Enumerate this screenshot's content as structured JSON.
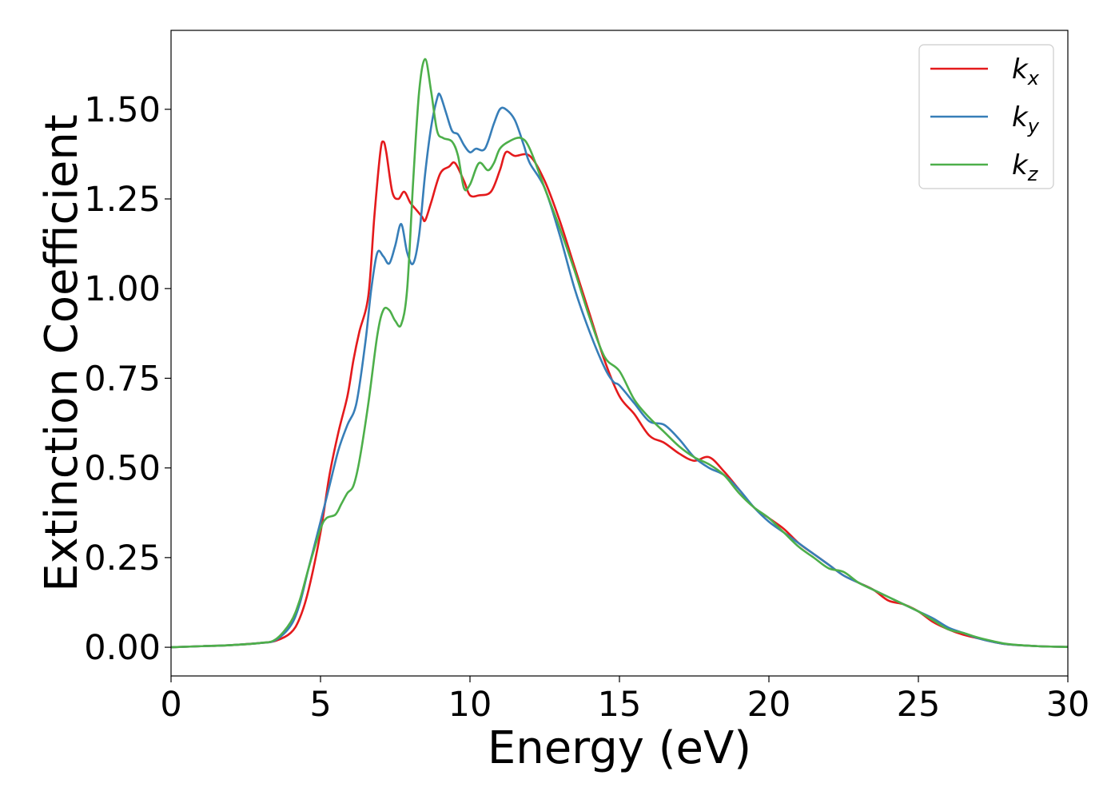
{
  "chart_data": {
    "type": "line",
    "title": "",
    "xlabel": "Energy (eV)",
    "ylabel": "Extinction Coefficient",
    "xlim": [
      0,
      30
    ],
    "ylim": [
      -0.08,
      1.72
    ],
    "xticks": [
      0,
      5,
      10,
      15,
      20,
      25,
      30
    ],
    "xtick_labels": [
      "0",
      "5",
      "10",
      "15",
      "20",
      "25",
      "30"
    ],
    "yticks": [
      0,
      0.25,
      0.5,
      0.75,
      1.0,
      1.25,
      1.5
    ],
    "ytick_labels": [
      "0.00",
      "0.25",
      "0.50",
      "0.75",
      "1.00",
      "1.25",
      "1.50"
    ],
    "grid": false,
    "legend": "top-right",
    "series": [
      {
        "name": "k",
        "subscript": "x",
        "color": "#e41a1c",
        "points": [
          [
            0,
            0
          ],
          [
            1,
            0.003
          ],
          [
            2,
            0.006
          ],
          [
            3,
            0.012
          ],
          [
            3.5,
            0.018
          ],
          [
            4,
            0.04
          ],
          [
            4.3,
            0.08
          ],
          [
            4.6,
            0.16
          ],
          [
            5,
            0.32
          ],
          [
            5.3,
            0.48
          ],
          [
            5.6,
            0.6
          ],
          [
            5.9,
            0.7
          ],
          [
            6.1,
            0.8
          ],
          [
            6.3,
            0.88
          ],
          [
            6.6,
            0.98
          ],
          [
            6.8,
            1.2
          ],
          [
            7.0,
            1.38
          ],
          [
            7.1,
            1.41
          ],
          [
            7.2,
            1.38
          ],
          [
            7.4,
            1.27
          ],
          [
            7.6,
            1.25
          ],
          [
            7.8,
            1.27
          ],
          [
            8.0,
            1.24
          ],
          [
            8.2,
            1.22
          ],
          [
            8.4,
            1.2
          ],
          [
            8.5,
            1.19
          ],
          [
            8.7,
            1.24
          ],
          [
            9.0,
            1.32
          ],
          [
            9.3,
            1.34
          ],
          [
            9.5,
            1.35
          ],
          [
            9.8,
            1.3
          ],
          [
            10.0,
            1.26
          ],
          [
            10.3,
            1.26
          ],
          [
            10.7,
            1.27
          ],
          [
            11.0,
            1.33
          ],
          [
            11.2,
            1.38
          ],
          [
            11.5,
            1.37
          ],
          [
            12.0,
            1.37
          ],
          [
            12.5,
            1.3
          ],
          [
            13.0,
            1.19
          ],
          [
            13.5,
            1.06
          ],
          [
            14.0,
            0.93
          ],
          [
            14.5,
            0.8
          ],
          [
            15.0,
            0.7
          ],
          [
            15.5,
            0.65
          ],
          [
            16.0,
            0.59
          ],
          [
            16.5,
            0.57
          ],
          [
            17.0,
            0.54
          ],
          [
            17.5,
            0.52
          ],
          [
            18.0,
            0.53
          ],
          [
            18.5,
            0.49
          ],
          [
            19.0,
            0.44
          ],
          [
            19.5,
            0.39
          ],
          [
            20.0,
            0.36
          ],
          [
            20.5,
            0.33
          ],
          [
            21.0,
            0.29
          ],
          [
            21.5,
            0.26
          ],
          [
            22.0,
            0.23
          ],
          [
            22.5,
            0.2
          ],
          [
            23.0,
            0.18
          ],
          [
            23.5,
            0.16
          ],
          [
            24.0,
            0.13
          ],
          [
            24.5,
            0.12
          ],
          [
            25.0,
            0.1
          ],
          [
            25.5,
            0.07
          ],
          [
            26.0,
            0.05
          ],
          [
            26.5,
            0.035
          ],
          [
            27.0,
            0.025
          ],
          [
            27.5,
            0.015
          ],
          [
            28.0,
            0.008
          ],
          [
            29.0,
            0.003
          ],
          [
            30.0,
            0.001
          ]
        ]
      },
      {
        "name": "k",
        "subscript": "y",
        "color": "#377eb8",
        "points": [
          [
            0,
            0
          ],
          [
            1,
            0.003
          ],
          [
            2,
            0.006
          ],
          [
            3,
            0.012
          ],
          [
            3.5,
            0.02
          ],
          [
            4,
            0.06
          ],
          [
            4.3,
            0.12
          ],
          [
            4.6,
            0.22
          ],
          [
            5,
            0.35
          ],
          [
            5.3,
            0.45
          ],
          [
            5.6,
            0.55
          ],
          [
            5.9,
            0.62
          ],
          [
            6.2,
            0.68
          ],
          [
            6.5,
            0.85
          ],
          [
            6.7,
            1.0
          ],
          [
            6.9,
            1.1
          ],
          [
            7.1,
            1.09
          ],
          [
            7.3,
            1.07
          ],
          [
            7.5,
            1.12
          ],
          [
            7.7,
            1.18
          ],
          [
            7.9,
            1.1
          ],
          [
            8.1,
            1.07
          ],
          [
            8.3,
            1.15
          ],
          [
            8.5,
            1.32
          ],
          [
            8.7,
            1.45
          ],
          [
            8.9,
            1.53
          ],
          [
            9.0,
            1.54
          ],
          [
            9.2,
            1.49
          ],
          [
            9.4,
            1.44
          ],
          [
            9.6,
            1.43
          ],
          [
            9.8,
            1.4
          ],
          [
            10.0,
            1.38
          ],
          [
            10.2,
            1.39
          ],
          [
            10.5,
            1.39
          ],
          [
            10.8,
            1.46
          ],
          [
            11.0,
            1.5
          ],
          [
            11.2,
            1.5
          ],
          [
            11.5,
            1.47
          ],
          [
            11.8,
            1.4
          ],
          [
            12.0,
            1.35
          ],
          [
            12.5,
            1.28
          ],
          [
            13.0,
            1.15
          ],
          [
            13.5,
            1.0
          ],
          [
            14.0,
            0.88
          ],
          [
            14.5,
            0.78
          ],
          [
            14.8,
            0.74
          ],
          [
            15.0,
            0.73
          ],
          [
            15.5,
            0.68
          ],
          [
            16.0,
            0.63
          ],
          [
            16.5,
            0.62
          ],
          [
            17.0,
            0.58
          ],
          [
            17.5,
            0.53
          ],
          [
            18.0,
            0.5
          ],
          [
            18.5,
            0.48
          ],
          [
            19.0,
            0.44
          ],
          [
            19.5,
            0.39
          ],
          [
            20.0,
            0.35
          ],
          [
            20.5,
            0.32
          ],
          [
            21.0,
            0.29
          ],
          [
            21.5,
            0.26
          ],
          [
            22.0,
            0.23
          ],
          [
            22.5,
            0.2
          ],
          [
            23.0,
            0.18
          ],
          [
            23.5,
            0.16
          ],
          [
            24.0,
            0.14
          ],
          [
            24.5,
            0.12
          ],
          [
            25.0,
            0.1
          ],
          [
            25.5,
            0.08
          ],
          [
            26.0,
            0.055
          ],
          [
            26.5,
            0.04
          ],
          [
            27.0,
            0.025
          ],
          [
            27.5,
            0.015
          ],
          [
            28.0,
            0.008
          ],
          [
            29.0,
            0.003
          ],
          [
            30.0,
            0.001
          ]
        ]
      },
      {
        "name": "k",
        "subscript": "z",
        "color": "#4daf4a",
        "points": [
          [
            0,
            0
          ],
          [
            1,
            0.003
          ],
          [
            2,
            0.006
          ],
          [
            3,
            0.012
          ],
          [
            3.5,
            0.022
          ],
          [
            4,
            0.07
          ],
          [
            4.3,
            0.13
          ],
          [
            4.6,
            0.22
          ],
          [
            5.0,
            0.33
          ],
          [
            5.2,
            0.36
          ],
          [
            5.5,
            0.37
          ],
          [
            5.7,
            0.4
          ],
          [
            5.9,
            0.43
          ],
          [
            6.1,
            0.45
          ],
          [
            6.3,
            0.52
          ],
          [
            6.6,
            0.68
          ],
          [
            6.9,
            0.87
          ],
          [
            7.1,
            0.94
          ],
          [
            7.3,
            0.94
          ],
          [
            7.5,
            0.91
          ],
          [
            7.7,
            0.9
          ],
          [
            7.9,
            1.0
          ],
          [
            8.1,
            1.3
          ],
          [
            8.3,
            1.55
          ],
          [
            8.5,
            1.64
          ],
          [
            8.7,
            1.55
          ],
          [
            8.9,
            1.44
          ],
          [
            9.1,
            1.42
          ],
          [
            9.4,
            1.41
          ],
          [
            9.6,
            1.37
          ],
          [
            9.8,
            1.28
          ],
          [
            10.0,
            1.29
          ],
          [
            10.3,
            1.35
          ],
          [
            10.6,
            1.33
          ],
          [
            10.8,
            1.35
          ],
          [
            11.0,
            1.39
          ],
          [
            11.3,
            1.41
          ],
          [
            11.7,
            1.42
          ],
          [
            12.0,
            1.39
          ],
          [
            12.5,
            1.28
          ],
          [
            13.0,
            1.17
          ],
          [
            13.5,
            1.05
          ],
          [
            14.0,
            0.92
          ],
          [
            14.5,
            0.81
          ],
          [
            15.0,
            0.77
          ],
          [
            15.5,
            0.69
          ],
          [
            16.0,
            0.64
          ],
          [
            16.5,
            0.6
          ],
          [
            17.0,
            0.56
          ],
          [
            17.5,
            0.53
          ],
          [
            18.0,
            0.51
          ],
          [
            18.5,
            0.48
          ],
          [
            19.0,
            0.43
          ],
          [
            19.5,
            0.39
          ],
          [
            20.0,
            0.36
          ],
          [
            20.5,
            0.32
          ],
          [
            21.0,
            0.28
          ],
          [
            21.5,
            0.25
          ],
          [
            22.0,
            0.22
          ],
          [
            22.5,
            0.21
          ],
          [
            23.0,
            0.18
          ],
          [
            23.5,
            0.16
          ],
          [
            24.0,
            0.14
          ],
          [
            24.5,
            0.12
          ],
          [
            25.0,
            0.1
          ],
          [
            25.5,
            0.075
          ],
          [
            26.0,
            0.05
          ],
          [
            26.5,
            0.04
          ],
          [
            27.0,
            0.027
          ],
          [
            27.5,
            0.017
          ],
          [
            28.0,
            0.009
          ],
          [
            29.0,
            0.003
          ],
          [
            30.0,
            0.001
          ]
        ]
      }
    ]
  }
}
